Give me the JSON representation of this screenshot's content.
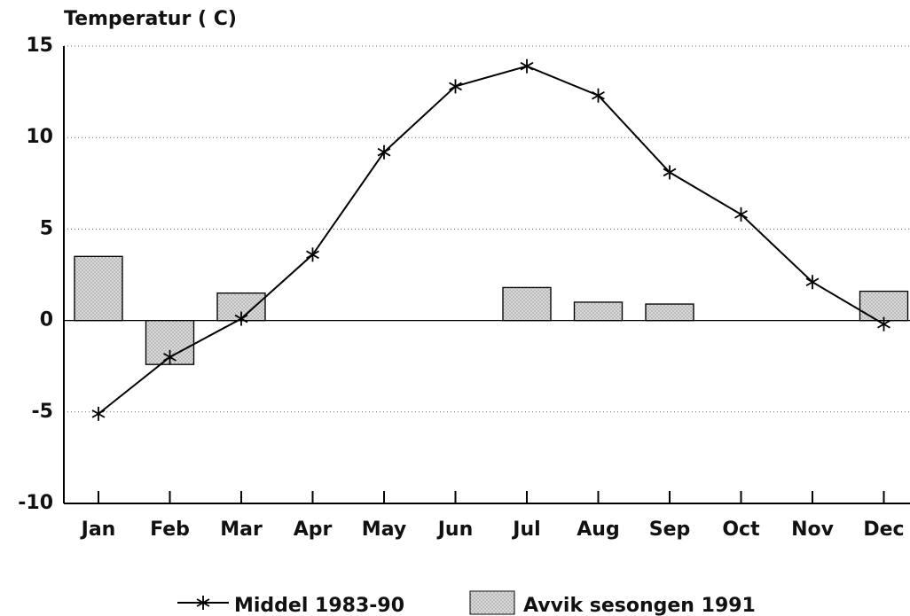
{
  "chart_data": {
    "type": "bar-line",
    "y_label": "Temperatur ( C)",
    "categories": [
      "Jan",
      "Feb",
      "Mar",
      "Apr",
      "May",
      "Jun",
      "Jul",
      "Aug",
      "Sep",
      "Oct",
      "Nov",
      "Dec"
    ],
    "series": [
      {
        "name": "Avvik sesongen 1991",
        "type": "bar",
        "color": "#d9d9d9",
        "values": [
          3.5,
          -2.4,
          1.5,
          null,
          null,
          null,
          1.8,
          1.0,
          0.9,
          null,
          null,
          1.6
        ]
      },
      {
        "name": "Middel 1983-90",
        "type": "line",
        "color": "#000000",
        "values": [
          -5.1,
          -2.0,
          0.1,
          3.6,
          9.2,
          12.8,
          13.9,
          12.3,
          8.1,
          5.8,
          2.1,
          -0.2
        ]
      }
    ],
    "ylim": [
      -10,
      15
    ],
    "yticks": [
      -10,
      -5,
      0,
      5,
      10,
      15
    ],
    "grid": true
  }
}
